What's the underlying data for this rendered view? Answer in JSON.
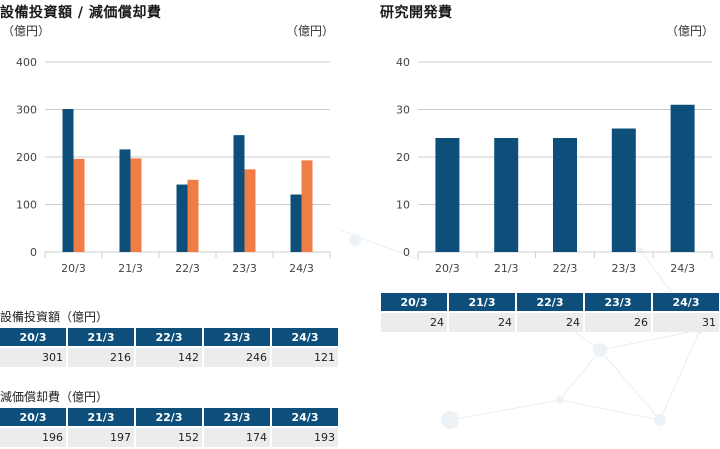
{
  "left_chart": {
    "title": "設備投資額 / 減価償却費",
    "unit_left": "（億円）",
    "unit_right": "（億円）"
  },
  "right_chart": {
    "title": "研究開発費",
    "unit_right": "（億円）"
  },
  "capex_table": {
    "caption": "設備投資額（億円）",
    "headers": [
      "20/3",
      "21/3",
      "22/3",
      "23/3",
      "24/3"
    ],
    "values": [
      "301",
      "216",
      "142",
      "246",
      "121"
    ]
  },
  "depreciation_table": {
    "caption": "減価償却費（億円）",
    "headers": [
      "20/3",
      "21/3",
      "22/3",
      "23/3",
      "24/3"
    ],
    "values": [
      "196",
      "197",
      "152",
      "174",
      "193"
    ]
  },
  "rd_table": {
    "headers": [
      "20/3",
      "21/3",
      "22/3",
      "23/3",
      "24/3"
    ],
    "values": [
      "24",
      "24",
      "24",
      "26",
      "31"
    ]
  },
  "colors": {
    "navy": "#0d4f7a",
    "orange": "#ef7d46",
    "grid": "#cccccc",
    "cell": "#ececec"
  },
  "chart_data": [
    {
      "type": "bar",
      "title": "設備投資額 / 減価償却費",
      "categories": [
        "20/3",
        "21/3",
        "22/3",
        "23/3",
        "24/3"
      ],
      "series": [
        {
          "name": "設備投資額",
          "values": [
            301,
            216,
            142,
            246,
            121
          ],
          "color": "#0d4f7a"
        },
        {
          "name": "減価償却費",
          "values": [
            196,
            197,
            152,
            174,
            193
          ],
          "color": "#ef7d46"
        }
      ],
      "ylim": [
        0,
        400
      ],
      "yticks": [
        "0",
        "100",
        "200",
        "300",
        "400"
      ],
      "grid": true
    },
    {
      "type": "bar",
      "title": "研究開発費",
      "categories": [
        "20/3",
        "21/3",
        "22/3",
        "23/3",
        "24/3"
      ],
      "series": [
        {
          "name": "研究開発費",
          "values": [
            24,
            24,
            24,
            26,
            31
          ],
          "color": "#0d4f7a"
        }
      ],
      "ylim": [
        0,
        40
      ],
      "yticks": [
        "0",
        "10",
        "20",
        "30",
        "40"
      ],
      "grid": true
    }
  ]
}
